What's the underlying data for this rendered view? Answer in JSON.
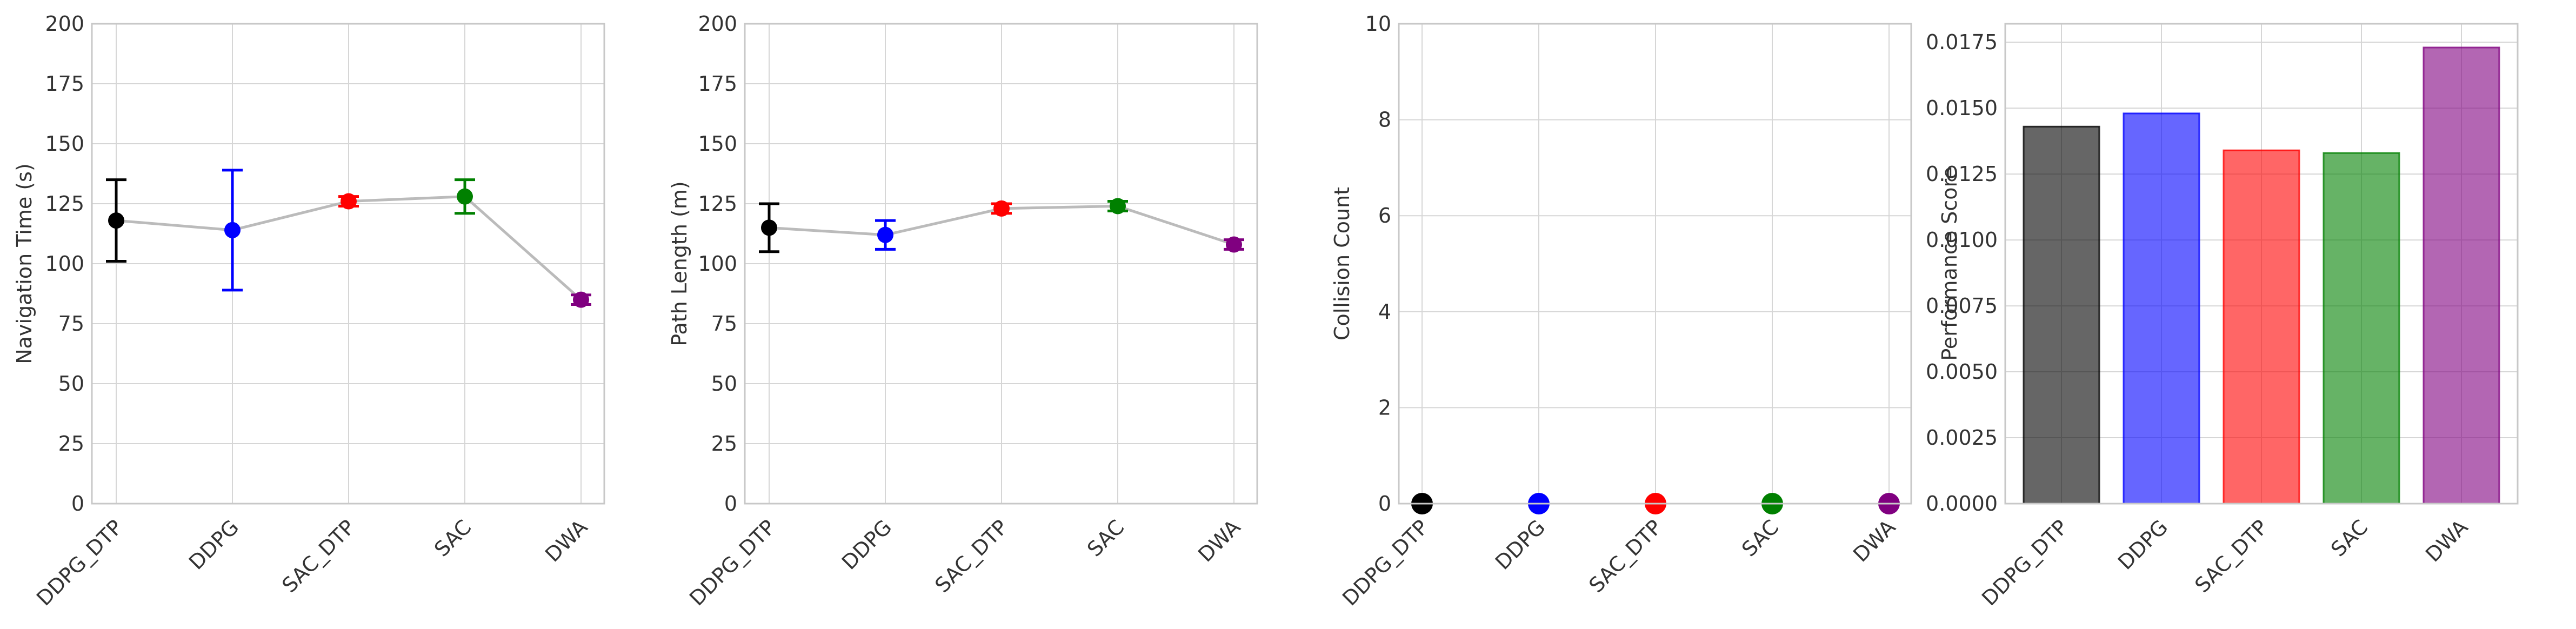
{
  "chart_data": [
    {
      "type": "line",
      "categories": [
        "DDPG_DTP",
        "DDPG",
        "SAC_DTP",
        "SAC",
        "DWA"
      ],
      "values": [
        118,
        114,
        126,
        128,
        85
      ],
      "errors": [
        17,
        25,
        2,
        7,
        2
      ],
      "point_colors": [
        "#000000",
        "#0000ff",
        "#ff0000",
        "#008000",
        "#800080"
      ],
      "line_color": "#bbbbbb",
      "title": "",
      "xlabel": "",
      "ylabel": "Navigation Time (s)",
      "ylim": [
        0,
        200
      ],
      "yticks": [
        "0",
        "25",
        "50",
        "75",
        "100",
        "125",
        "150",
        "175",
        "200"
      ],
      "grid": true
    },
    {
      "type": "line",
      "categories": [
        "DDPG_DTP",
        "DDPG",
        "SAC_DTP",
        "SAC",
        "DWA"
      ],
      "values": [
        115,
        112,
        123,
        124,
        108
      ],
      "errors": [
        10,
        6,
        2,
        2,
        2
      ],
      "point_colors": [
        "#000000",
        "#0000ff",
        "#ff0000",
        "#008000",
        "#800080"
      ],
      "line_color": "#bbbbbb",
      "title": "",
      "xlabel": "",
      "ylabel": "Path Length (m)",
      "ylim": [
        0,
        200
      ],
      "yticks": [
        "0",
        "25",
        "50",
        "75",
        "100",
        "125",
        "150",
        "175",
        "200"
      ],
      "grid": true
    },
    {
      "type": "scatter",
      "categories": [
        "DDPG_DTP",
        "DDPG",
        "SAC_DTP",
        "SAC",
        "DWA"
      ],
      "values": [
        0,
        0,
        0,
        0,
        0
      ],
      "point_colors": [
        "#000000",
        "#0000ff",
        "#ff0000",
        "#008000",
        "#800080"
      ],
      "title": "",
      "xlabel": "",
      "ylabel": "Collision Count",
      "ylim": [
        0,
        10
      ],
      "yticks": [
        "0",
        "2",
        "4",
        "6",
        "8",
        "10"
      ],
      "grid": true
    },
    {
      "type": "bar",
      "categories": [
        "DDPG_DTP",
        "DDPG",
        "SAC_DTP",
        "SAC",
        "DWA"
      ],
      "values": [
        0.0143,
        0.0148,
        0.0134,
        0.0133,
        0.0173
      ],
      "colors": [
        "#000000",
        "#0000ff",
        "#ff0000",
        "#008000",
        "#800080"
      ],
      "opacity": 0.6,
      "title": "",
      "xlabel": "",
      "ylabel": "Performance Score",
      "ylim": [
        0,
        0.0182
      ],
      "yticks": [
        "0.0000",
        "0.0025",
        "0.0050",
        "0.0075",
        "0.0100",
        "0.0125",
        "0.0150",
        "0.0175"
      ],
      "grid": true
    }
  ]
}
